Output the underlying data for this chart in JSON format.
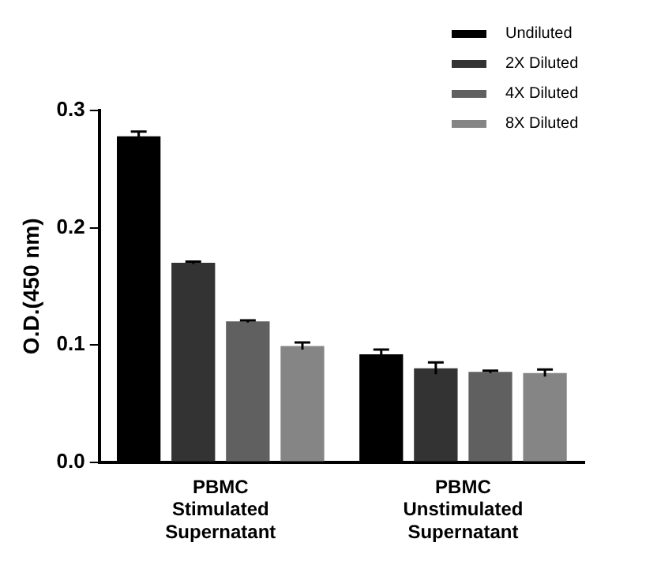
{
  "chart_data": {
    "type": "bar",
    "ylabel": "O.D.(450 nm)",
    "categories": [
      "PBMC\nStimulated\nSupernatant",
      "PBMC\nUnstimulated\nSupernatant"
    ],
    "series": [
      {
        "name": "Undiluted",
        "color": "#000000",
        "values": [
          0.278,
          0.092
        ],
        "errors": [
          0.004,
          0.004
        ]
      },
      {
        "name": "2X Diluted",
        "color": "#333333",
        "values": [
          0.17,
          0.08
        ],
        "errors": [
          0.001,
          0.005
        ]
      },
      {
        "name": "4X Diluted",
        "color": "#606060",
        "values": [
          0.12,
          0.077
        ],
        "errors": [
          0.001,
          0.001
        ]
      },
      {
        "name": "8X Diluted",
        "color": "#858585",
        "values": [
          0.099,
          0.076
        ],
        "errors": [
          0.003,
          0.003
        ]
      }
    ],
    "ylim": [
      0,
      0.3
    ],
    "yticks": [
      {
        "value": 0,
        "label": "0.0"
      },
      0.1,
      0.2,
      0.3
    ],
    "grid": false,
    "legend": "top right"
  }
}
